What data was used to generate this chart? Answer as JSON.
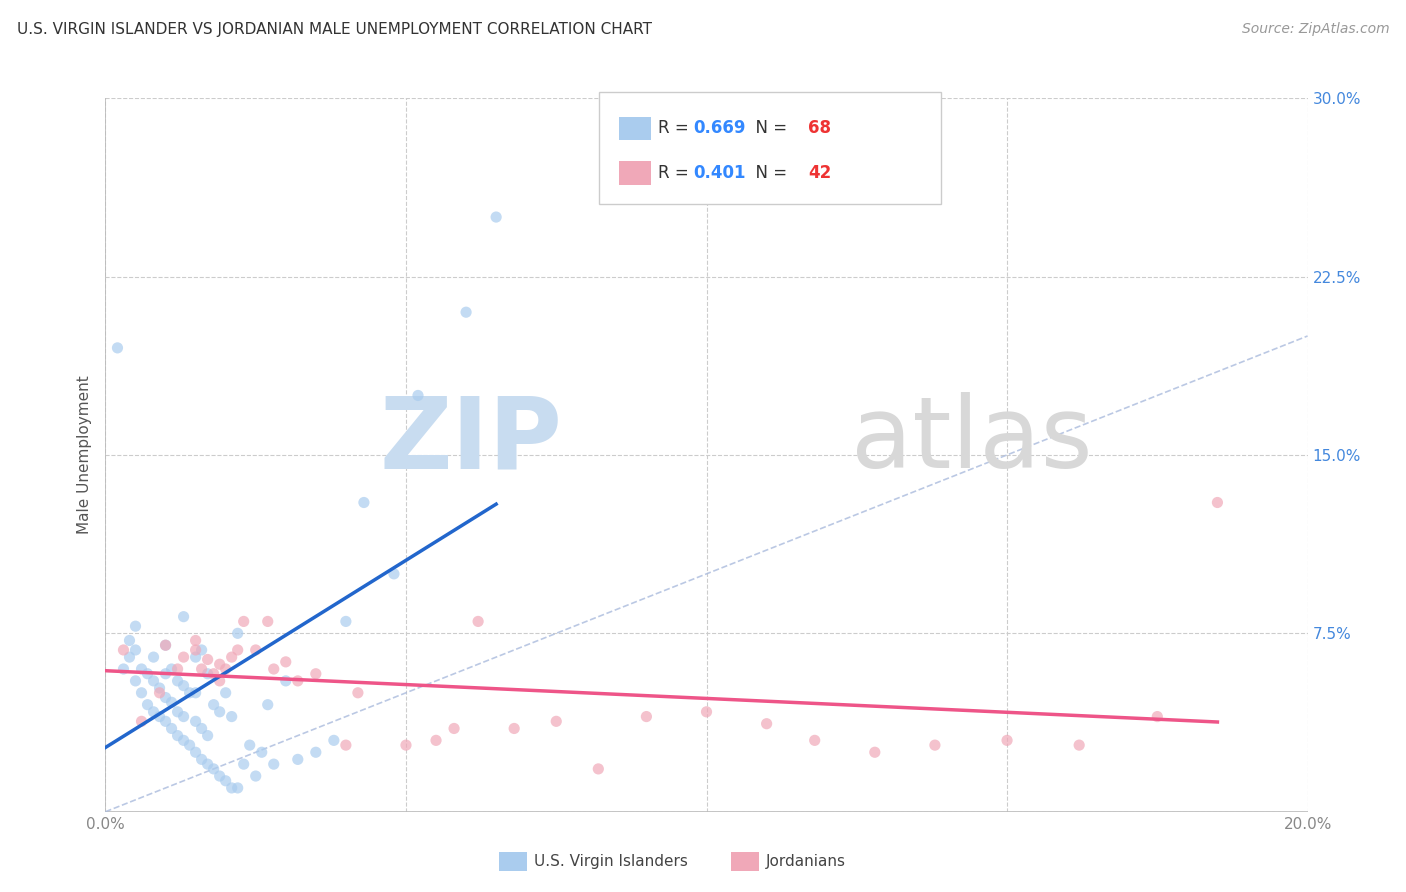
{
  "title": "U.S. VIRGIN ISLANDER VS JORDANIAN MALE UNEMPLOYMENT CORRELATION CHART",
  "source": "Source: ZipAtlas.com",
  "ylabel": "Male Unemployment",
  "xlim": [
    0.0,
    0.2
  ],
  "ylim": [
    0.0,
    0.3
  ],
  "xticks": [
    0.0,
    0.05,
    0.1,
    0.15,
    0.2
  ],
  "yticks": [
    0.0,
    0.075,
    0.15,
    0.225,
    0.3
  ],
  "ytick_right_labels": [
    "",
    "7.5%",
    "15.0%",
    "22.5%",
    "30.0%"
  ],
  "xtick_labels": [
    "0.0%",
    "",
    "",
    "",
    "20.0%"
  ],
  "background_color": "#ffffff",
  "grid_color": "#cccccc",
  "legend_R1": "0.669",
  "legend_N1": "68",
  "legend_R2": "0.401",
  "legend_N2": "42",
  "legend_label1": "U.S. Virgin Islanders",
  "legend_label2": "Jordanians",
  "scatter_color1": "#aaccee",
  "scatter_color2": "#f0a8b8",
  "line_color1": "#2266cc",
  "line_color2": "#ee5588",
  "diagonal_color": "#aabbdd",
  "vi_x": [
    0.002,
    0.003,
    0.004,
    0.004,
    0.005,
    0.005,
    0.005,
    0.006,
    0.006,
    0.007,
    0.007,
    0.008,
    0.008,
    0.008,
    0.009,
    0.009,
    0.01,
    0.01,
    0.01,
    0.01,
    0.011,
    0.011,
    0.011,
    0.012,
    0.012,
    0.012,
    0.013,
    0.013,
    0.013,
    0.013,
    0.014,
    0.014,
    0.015,
    0.015,
    0.015,
    0.015,
    0.016,
    0.016,
    0.016,
    0.017,
    0.017,
    0.017,
    0.018,
    0.018,
    0.019,
    0.019,
    0.02,
    0.02,
    0.021,
    0.021,
    0.022,
    0.022,
    0.023,
    0.024,
    0.025,
    0.026,
    0.027,
    0.028,
    0.03,
    0.032,
    0.035,
    0.038,
    0.04,
    0.043,
    0.048,
    0.052,
    0.06,
    0.065
  ],
  "vi_y": [
    0.195,
    0.06,
    0.065,
    0.072,
    0.055,
    0.068,
    0.078,
    0.05,
    0.06,
    0.045,
    0.058,
    0.042,
    0.055,
    0.065,
    0.04,
    0.052,
    0.038,
    0.048,
    0.058,
    0.07,
    0.035,
    0.046,
    0.06,
    0.032,
    0.042,
    0.055,
    0.03,
    0.04,
    0.053,
    0.082,
    0.028,
    0.05,
    0.025,
    0.038,
    0.05,
    0.065,
    0.022,
    0.035,
    0.068,
    0.02,
    0.032,
    0.058,
    0.018,
    0.045,
    0.015,
    0.042,
    0.013,
    0.05,
    0.01,
    0.04,
    0.01,
    0.075,
    0.02,
    0.028,
    0.015,
    0.025,
    0.045,
    0.02,
    0.055,
    0.022,
    0.025,
    0.03,
    0.08,
    0.13,
    0.1,
    0.175,
    0.21,
    0.25
  ],
  "jo_x": [
    0.003,
    0.006,
    0.009,
    0.01,
    0.012,
    0.013,
    0.015,
    0.015,
    0.016,
    0.017,
    0.018,
    0.019,
    0.019,
    0.02,
    0.021,
    0.022,
    0.023,
    0.025,
    0.027,
    0.028,
    0.03,
    0.032,
    0.035,
    0.04,
    0.042,
    0.05,
    0.055,
    0.058,
    0.062,
    0.068,
    0.075,
    0.082,
    0.09,
    0.1,
    0.11,
    0.118,
    0.128,
    0.138,
    0.15,
    0.162,
    0.175,
    0.185
  ],
  "jo_y": [
    0.068,
    0.038,
    0.05,
    0.07,
    0.06,
    0.065,
    0.068,
    0.072,
    0.06,
    0.064,
    0.058,
    0.055,
    0.062,
    0.06,
    0.065,
    0.068,
    0.08,
    0.068,
    0.08,
    0.06,
    0.063,
    0.055,
    0.058,
    0.028,
    0.05,
    0.028,
    0.03,
    0.035,
    0.08,
    0.035,
    0.038,
    0.018,
    0.04,
    0.042,
    0.037,
    0.03,
    0.025,
    0.028,
    0.03,
    0.028,
    0.04,
    0.13
  ]
}
